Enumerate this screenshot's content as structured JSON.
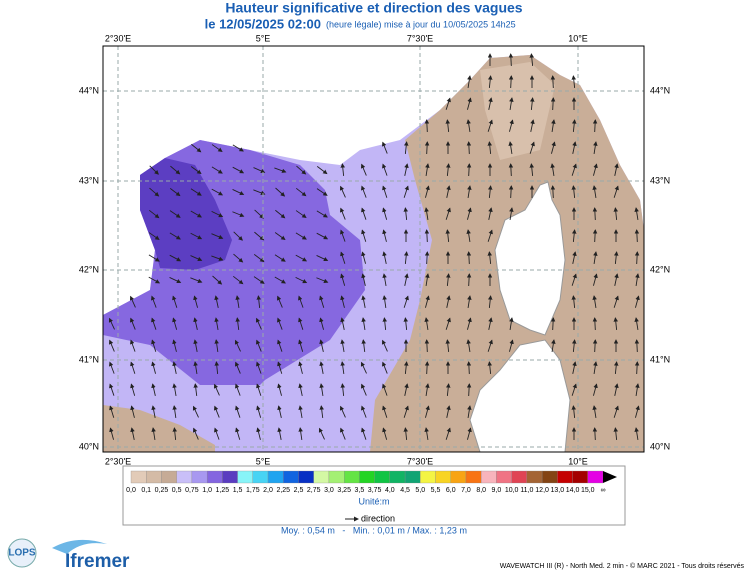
{
  "header": {
    "title": "Hauteur significative et direction des vagues",
    "date": "le 12/05/2025 02:00",
    "update": "(heure légale) mise à jour du 10/05/2025 14h25"
  },
  "map": {
    "lon_labels": [
      "2°30'E",
      "5°E",
      "7°30'E",
      "10°E"
    ],
    "lat_labels": [
      "44°N",
      "43°N",
      "42°N",
      "41°N",
      "40°N"
    ]
  },
  "legend": {
    "labels": [
      "0,0",
      "0,1",
      "0,25",
      "0,5",
      "0,75",
      "1,0",
      "1,25",
      "1,5",
      "1,75",
      "2,0",
      "2,25",
      "2,5",
      "2,75",
      "3,0",
      "3,25",
      "3,5",
      "3,75",
      "4,0",
      "4,5",
      "5,0",
      "5,5",
      "6,0",
      "7,0",
      "8,0",
      "9,0",
      "10,0",
      "11,0",
      "12,0",
      "13,0",
      "14,0",
      "15,0",
      "∞"
    ],
    "colors": [
      "#e2cbb8",
      "#d4bba6",
      "#c6ab96",
      "#c9bff8",
      "#a898f0",
      "#8466e0",
      "#5a3cc0",
      "#88f4f8",
      "#48d4f4",
      "#20a4f0",
      "#1064e0",
      "#0830c4",
      "#d4f8a4",
      "#a4f074",
      "#64e444",
      "#24d424",
      "#10c444",
      "#10b464",
      "#10a474",
      "#f4f444",
      "#f8d424",
      "#f8a414",
      "#f87414",
      "#f8b4bc",
      "#f07484",
      "#e04454",
      "#a46434",
      "#844414",
      "#c40000",
      "#a40000",
      "#e400e4"
    ],
    "unit": "Unité:m",
    "direction": "direction"
  },
  "stats": "Moy. : 0,54 m   -   Min. : 0,01 m / Max. : 1,23 m",
  "footer": {
    "credit": "WAVEWATCH III (R) - North Med. 2 min - © MARC 2021 - Tous droits réservés",
    "logo_left": "LOPS",
    "logo_right": "Ifremer"
  }
}
